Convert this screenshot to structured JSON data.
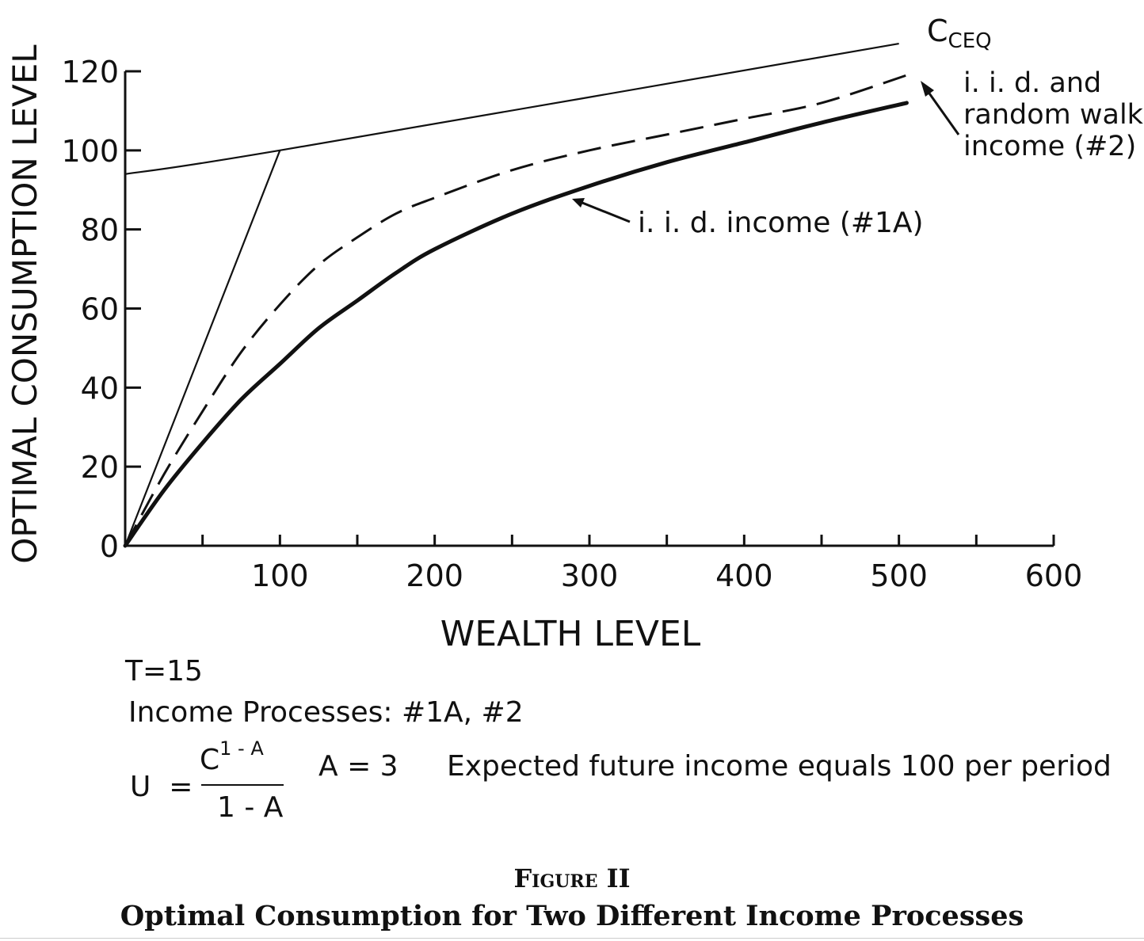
{
  "chart_data": {
    "type": "line",
    "xlabel": "WEALTH LEVEL",
    "ylabel": "OPTIMAL CONSUMPTION LEVEL",
    "xlim": [
      0,
      600
    ],
    "ylim": [
      0,
      120
    ],
    "x_ticks": [
      100,
      200,
      300,
      400,
      500,
      600
    ],
    "y_ticks": [
      0,
      20,
      40,
      60,
      80,
      100,
      120
    ],
    "grid": false,
    "series": [
      {
        "name": "C_CEQ",
        "style": "thin solid",
        "x": [
          0,
          100,
          500
        ],
        "y": [
          94,
          100,
          127
        ]
      },
      {
        "style": "thin solid",
        "x": [
          0,
          100
        ],
        "y": [
          0,
          100
        ]
      },
      {
        "name": "i.i.d. and random walk income (#2)",
        "style": "dashed",
        "x": [
          0,
          25,
          50,
          75,
          100,
          125,
          150,
          175,
          200,
          250,
          300,
          350,
          400,
          450,
          505
        ],
        "y": [
          0,
          18,
          34,
          49,
          61,
          71,
          78,
          84,
          88,
          95,
          100,
          104,
          108,
          112,
          119
        ]
      },
      {
        "name": "i.i.d. income (#1A)",
        "style": "thick solid",
        "x": [
          0,
          25,
          50,
          75,
          100,
          125,
          150,
          175,
          200,
          250,
          300,
          350,
          400,
          450,
          505
        ],
        "y": [
          0,
          14,
          26,
          37,
          46,
          55,
          62,
          69,
          75,
          84,
          91,
          97,
          102,
          107,
          112
        ]
      }
    ],
    "annotations": {
      "cceq": {
        "main": "C",
        "sub": "CEQ"
      },
      "random_walk": [
        "i. i. d. and",
        "random walk",
        "income (#2)"
      ],
      "iid": "i. i. d. income (#1A)"
    }
  },
  "notes": {
    "t": "T=15",
    "processes": "Income Processes: #1A, #2",
    "utility": {
      "lhs": "U  =",
      "numerator_base": "C",
      "numerator_exp": "1 - A",
      "denominator": "1 - A",
      "param": "A = 3"
    },
    "expected": "Expected future income equals 100 per period"
  },
  "caption": {
    "figure": "Figure II",
    "title": "Optimal Consumption for Two Different Income Processes"
  }
}
